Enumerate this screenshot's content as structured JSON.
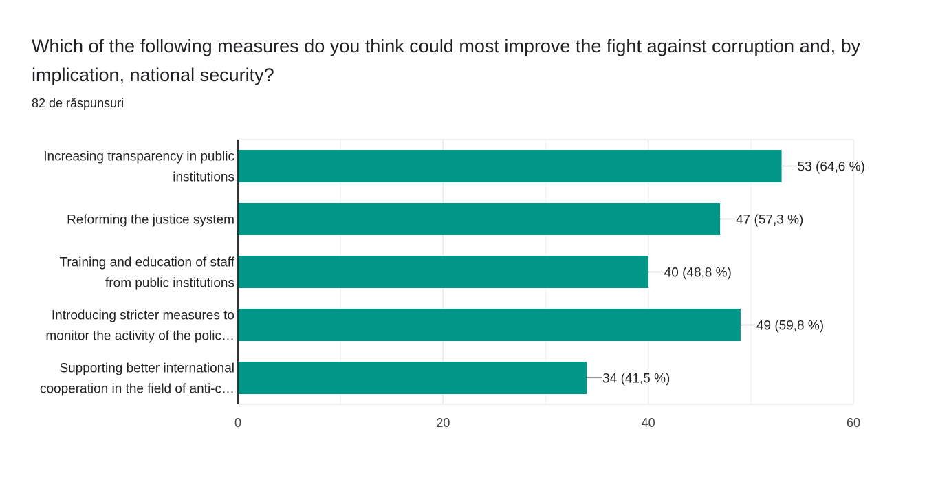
{
  "question": {
    "title": "Which of the following measures do you think could most improve the fight against corruption and, by implication, national security?",
    "response_count": "82 de răspunsuri"
  },
  "chart_data": {
    "type": "bar",
    "orientation": "horizontal",
    "categories": [
      [
        "Increasing transparency in public",
        "institutions"
      ],
      [
        "Reforming the justice system"
      ],
      [
        "Training and education of staff",
        "from public institutions"
      ],
      [
        "Introducing stricter measures to",
        "monitor the activity of the polic…"
      ],
      [
        "Supporting better international",
        "cooperation in the field of anti-c…"
      ]
    ],
    "values": [
      53,
      47,
      40,
      49,
      34
    ],
    "data_labels": [
      "53 (64,6 %)",
      "47 (57,3 %)",
      "40 (48,8 %)",
      "49 (59,8 %)",
      "34 (41,5 %)"
    ],
    "xlim": [
      0,
      60
    ],
    "xticks": [
      "0",
      "20",
      "40",
      "60"
    ],
    "xtick_values": [
      0,
      20,
      40,
      60
    ],
    "grid": true,
    "bar_color": "#009688"
  }
}
